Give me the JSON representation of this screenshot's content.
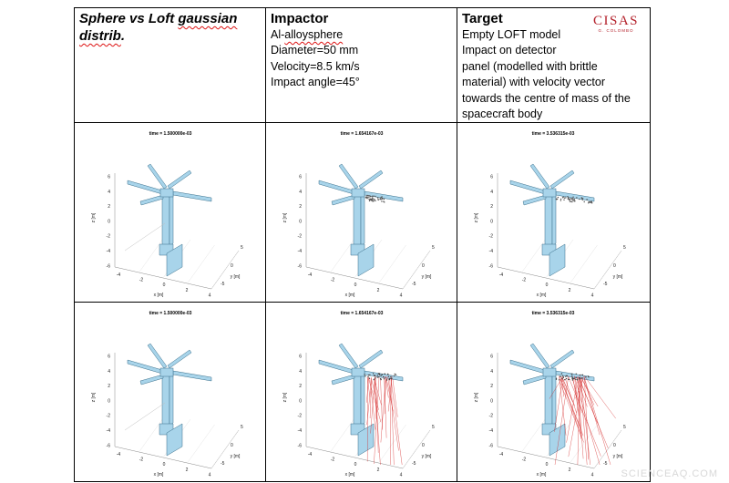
{
  "header": {
    "col1": {
      "title": "Sphere vs Loft gaussian distrib.",
      "line1": "Sphere vs Loft ",
      "wavy1": "gaussian",
      "line2_wavy": "distrib",
      "line2_end": "."
    },
    "col2": {
      "title": "Impactor",
      "material_prefix": "Al-",
      "material_wavy": "alloysphere",
      "lines": [
        "Diameter=50 mm",
        "Velocity=8.5 km/s",
        "Impact angle=45°"
      ]
    },
    "col3": {
      "title": "Target",
      "lines": [
        "Empty LOFT model",
        "Impact on detector",
        "panel (modelled with brittle",
        "material) with velocity vector",
        "towards the centre of mass of the",
        "spacecraft body"
      ]
    }
  },
  "logo": {
    "text": "CISAS",
    "subtitle": "G. COLOMBO"
  },
  "plots": {
    "row1": [
      {
        "time": "time = 1.500000e-03"
      },
      {
        "time": "time = 1.654167e-03"
      },
      {
        "time": "time = 3.536315e-03"
      }
    ],
    "row2": [
      {
        "time": "time = 1.500000e-03"
      },
      {
        "time": "time = 1.654167e-03"
      },
      {
        "time": "time = 3.536315e-03"
      }
    ],
    "z_ticks": [
      "6",
      "4",
      "2",
      "0",
      "-2",
      "-4",
      "-6"
    ],
    "x_ticks": [
      "-4",
      "-2",
      "0",
      "2",
      "4"
    ],
    "y_ticks": [
      "-5",
      "0",
      "5"
    ],
    "z_label": "z [m]",
    "x_label": "x [m]",
    "y_label": "y [m]"
  },
  "colors": {
    "structure": "#a8d4ea",
    "debris_gray": "#555555",
    "debris_red": "#d22020",
    "logo": "#b3202a"
  },
  "watermark": "SCIENCEAQ.COM"
}
